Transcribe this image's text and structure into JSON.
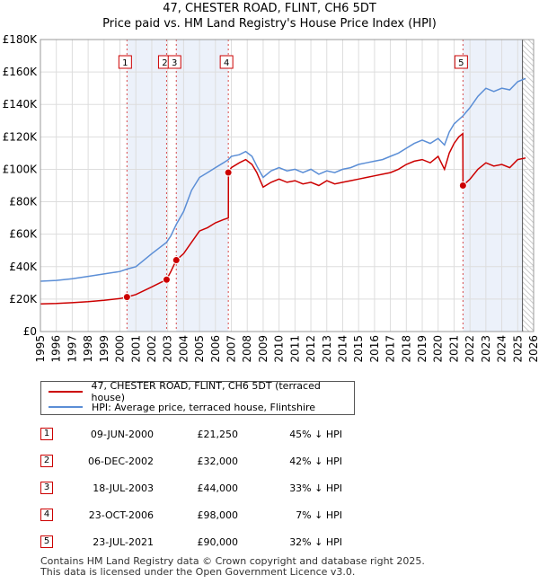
{
  "chart_data": {
    "type": "line",
    "title": "47, CHESTER ROAD, FLINT, CH6 5DT",
    "subtitle": "Price paid vs. HM Land Registry's House Price Index (HPI)",
    "xlim": [
      1995,
      2026
    ],
    "ylim": [
      0,
      180000
    ],
    "x_ticks": [
      "1995",
      "1996",
      "1997",
      "1998",
      "1999",
      "2000",
      "2001",
      "2002",
      "2003",
      "2004",
      "2005",
      "2006",
      "2007",
      "2008",
      "2009",
      "2010",
      "2011",
      "2012",
      "2013",
      "2014",
      "2015",
      "2016",
      "2017",
      "2018",
      "2019",
      "2020",
      "2021",
      "2022",
      "2023",
      "2024",
      "2025",
      "2026"
    ],
    "y_ticks": [
      {
        "value": 0,
        "label": "£0"
      },
      {
        "value": 20000,
        "label": "£20K"
      },
      {
        "value": 40000,
        "label": "£40K"
      },
      {
        "value": 60000,
        "label": "£60K"
      },
      {
        "value": 80000,
        "label": "£80K"
      },
      {
        "value": 100000,
        "label": "£100K"
      },
      {
        "value": 120000,
        "label": "£120K"
      },
      {
        "value": 140000,
        "label": "£140K"
      },
      {
        "value": 160000,
        "label": "£160K"
      },
      {
        "value": 180000,
        "label": "£180K"
      }
    ],
    "grid": true,
    "forecast_start": 2025.3,
    "series": [
      {
        "name": "47, CHESTER ROAD, FLINT, CH6 5DT (terraced house)",
        "color": "#cc0000",
        "points": [
          [
            1995.0,
            17000
          ],
          [
            1996.0,
            17300
          ],
          [
            1997.0,
            17800
          ],
          [
            1998.0,
            18400
          ],
          [
            1999.0,
            19200
          ],
          [
            2000.0,
            20300
          ],
          [
            2000.44,
            21250
          ],
          [
            2001.0,
            22800
          ],
          [
            2002.0,
            27500
          ],
          [
            2002.93,
            32000
          ],
          [
            2003.2,
            37000
          ],
          [
            2003.54,
            44000
          ],
          [
            2004.0,
            48000
          ],
          [
            2004.5,
            55000
          ],
          [
            2005.0,
            62000
          ],
          [
            2005.5,
            64000
          ],
          [
            2006.0,
            67000
          ],
          [
            2006.5,
            69000
          ],
          [
            2006.81,
            70000
          ],
          [
            2006.82,
            98000
          ],
          [
            2007.0,
            101000
          ],
          [
            2007.5,
            104000
          ],
          [
            2007.9,
            106000
          ],
          [
            2008.3,
            103000
          ],
          [
            2008.6,
            98000
          ],
          [
            2009.0,
            89000
          ],
          [
            2009.5,
            92000
          ],
          [
            2010.0,
            94000
          ],
          [
            2010.5,
            92000
          ],
          [
            2011.0,
            93000
          ],
          [
            2011.5,
            91000
          ],
          [
            2012.0,
            92000
          ],
          [
            2012.5,
            90000
          ],
          [
            2013.0,
            93000
          ],
          [
            2013.5,
            91000
          ],
          [
            2014.0,
            92000
          ],
          [
            2014.5,
            93000
          ],
          [
            2015.0,
            94000
          ],
          [
            2015.5,
            95000
          ],
          [
            2016.0,
            96000
          ],
          [
            2016.5,
            97000
          ],
          [
            2017.0,
            98000
          ],
          [
            2017.5,
            100000
          ],
          [
            2018.0,
            103000
          ],
          [
            2018.5,
            105000
          ],
          [
            2019.0,
            106000
          ],
          [
            2019.5,
            104000
          ],
          [
            2020.0,
            108000
          ],
          [
            2020.4,
            100000
          ],
          [
            2020.7,
            110000
          ],
          [
            2021.0,
            116000
          ],
          [
            2021.3,
            120000
          ],
          [
            2021.55,
            122000
          ],
          [
            2021.56,
            90000
          ],
          [
            2022.0,
            94000
          ],
          [
            2022.5,
            100000
          ],
          [
            2023.0,
            104000
          ],
          [
            2023.5,
            102000
          ],
          [
            2024.0,
            103000
          ],
          [
            2024.5,
            101000
          ],
          [
            2025.0,
            106000
          ],
          [
            2025.5,
            107000
          ]
        ]
      },
      {
        "name": "HPI: Average price, terraced house, Flintshire",
        "color": "#5b8ed6",
        "points": [
          [
            1995.0,
            31000
          ],
          [
            1996.0,
            31500
          ],
          [
            1997.0,
            32500
          ],
          [
            1998.0,
            34000
          ],
          [
            1999.0,
            35500
          ],
          [
            2000.0,
            37000
          ],
          [
            2000.44,
            38500
          ],
          [
            2001.0,
            40000
          ],
          [
            2002.0,
            48000
          ],
          [
            2002.93,
            55000
          ],
          [
            2003.2,
            59000
          ],
          [
            2003.54,
            66000
          ],
          [
            2004.0,
            74000
          ],
          [
            2004.5,
            87000
          ],
          [
            2005.0,
            95000
          ],
          [
            2005.5,
            98000
          ],
          [
            2006.0,
            101000
          ],
          [
            2006.5,
            104000
          ],
          [
            2006.82,
            106000
          ],
          [
            2007.0,
            108000
          ],
          [
            2007.5,
            109000
          ],
          [
            2007.9,
            111000
          ],
          [
            2008.3,
            108000
          ],
          [
            2008.6,
            102000
          ],
          [
            2009.0,
            95000
          ],
          [
            2009.5,
            99000
          ],
          [
            2010.0,
            101000
          ],
          [
            2010.5,
            99000
          ],
          [
            2011.0,
            100000
          ],
          [
            2011.5,
            98000
          ],
          [
            2012.0,
            100000
          ],
          [
            2012.5,
            97000
          ],
          [
            2013.0,
            99000
          ],
          [
            2013.5,
            98000
          ],
          [
            2014.0,
            100000
          ],
          [
            2014.5,
            101000
          ],
          [
            2015.0,
            103000
          ],
          [
            2015.5,
            104000
          ],
          [
            2016.0,
            105000
          ],
          [
            2016.5,
            106000
          ],
          [
            2017.0,
            108000
          ],
          [
            2017.5,
            110000
          ],
          [
            2018.0,
            113000
          ],
          [
            2018.5,
            116000
          ],
          [
            2019.0,
            118000
          ],
          [
            2019.5,
            116000
          ],
          [
            2020.0,
            119000
          ],
          [
            2020.4,
            115000
          ],
          [
            2020.7,
            123000
          ],
          [
            2021.0,
            128000
          ],
          [
            2021.56,
            133000
          ],
          [
            2022.0,
            138000
          ],
          [
            2022.5,
            145000
          ],
          [
            2023.0,
            150000
          ],
          [
            2023.5,
            148000
          ],
          [
            2024.0,
            150000
          ],
          [
            2024.5,
            149000
          ],
          [
            2025.0,
            154000
          ],
          [
            2025.5,
            156000
          ]
        ]
      }
    ],
    "sales": [
      {
        "num": "1",
        "x": 2000.44,
        "price": 21250,
        "date": "09-JUN-2000",
        "price_label": "£21,250",
        "hpi_label": "45% ↓ HPI"
      },
      {
        "num": "2",
        "x": 2002.93,
        "price": 32000,
        "date": "06-DEC-2002",
        "price_label": "£32,000",
        "hpi_label": "42% ↓ HPI"
      },
      {
        "num": "3",
        "x": 2003.54,
        "price": 44000,
        "date": "18-JUL-2003",
        "price_label": "£44,000",
        "hpi_label": "33% ↓ HPI"
      },
      {
        "num": "4",
        "x": 2006.81,
        "price": 98000,
        "date": "23-OCT-2006",
        "price_label": "£98,000",
        "hpi_label": "7% ↓ HPI"
      },
      {
        "num": "5",
        "x": 2021.56,
        "price": 90000,
        "date": "23-JUL-2021",
        "price_label": "£90,000",
        "hpi_label": "32% ↓ HPI"
      }
    ]
  },
  "legend": {
    "property_label": "47, CHESTER ROAD, FLINT, CH6 5DT (terraced house)",
    "hpi_label": "HPI: Average price, terraced house, Flintshire"
  },
  "footer": {
    "line1": "Contains HM Land Registry data © Crown copyright and database right 2025.",
    "line2": "This data is licensed under the Open Government Licence v3.0."
  },
  "colors": {
    "property": "#cc0000",
    "hpi": "#5b8ed6",
    "shade": "#dce6f5"
  }
}
